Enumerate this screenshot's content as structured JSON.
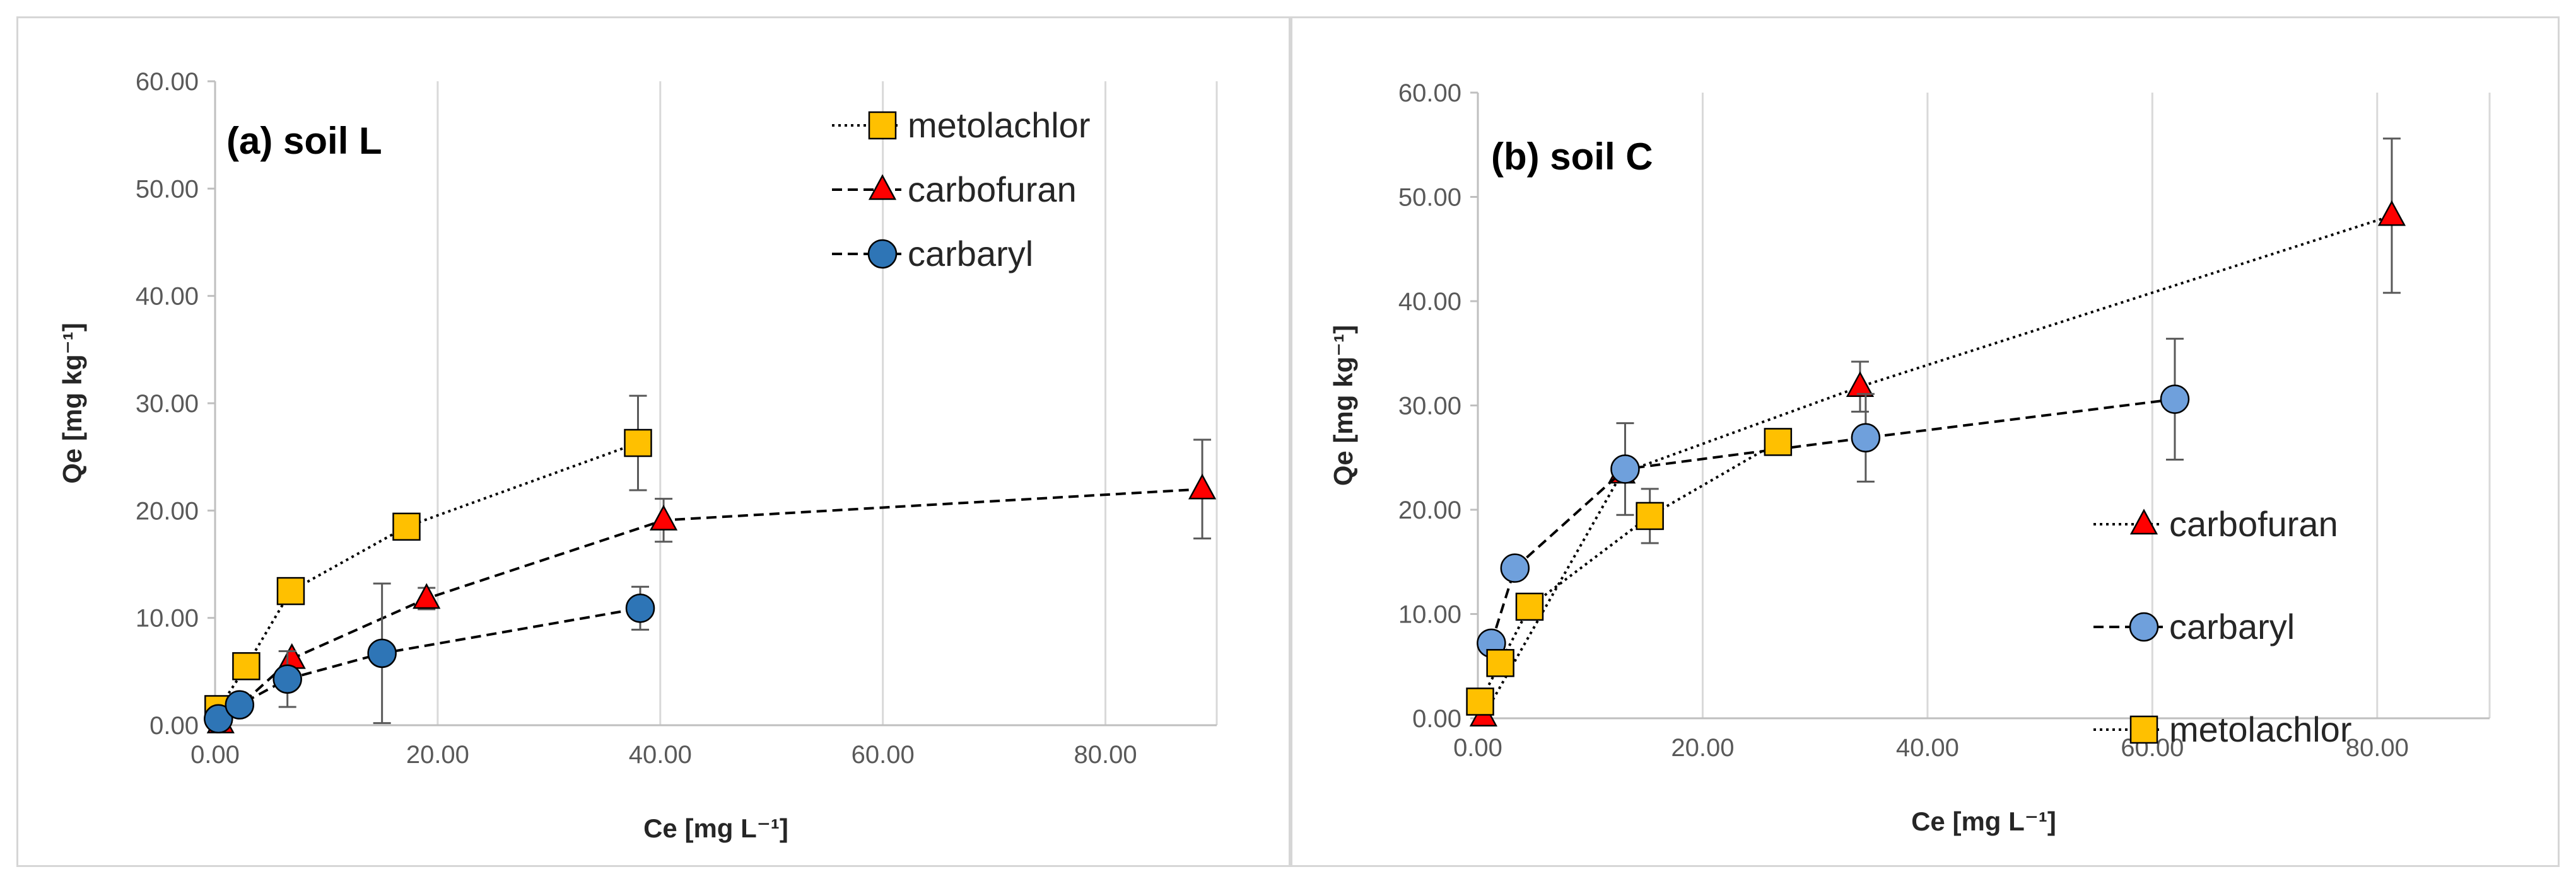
{
  "chart_data": [
    {
      "type": "scatter",
      "title": "(a) soil L",
      "xlabel": "Ce [mg L⁻¹]",
      "ylabel": "Qe [mg kg⁻¹]",
      "xlim": [
        0,
        90
      ],
      "ylim": [
        0,
        60
      ],
      "xticks": [
        "0.00",
        "20.00",
        "40.00",
        "60.00",
        "80.00"
      ],
      "yticks": [
        "0.00",
        "10.00",
        "20.00",
        "30.00",
        "40.00",
        "50.00",
        "60.00"
      ],
      "grid": "vertical",
      "legend_position": "top-right",
      "series": [
        {
          "name": "metolachlor",
          "marker": "square",
          "color": "#FFC000",
          "line": "dotted",
          "x": [
            0.3,
            2.8,
            6.8,
            17.2,
            38.0
          ],
          "y": [
            1.5,
            5.5,
            12.5,
            18.5,
            26.3
          ],
          "err": [
            0,
            0,
            0,
            0,
            4.4
          ]
        },
        {
          "name": "carbofuran",
          "marker": "triangle",
          "color": "#FF0000",
          "line": "dashed",
          "x": [
            0.5,
            6.9,
            19.0,
            40.3,
            88.7
          ],
          "y": [
            0.2,
            6.2,
            11.8,
            19.1,
            22.0
          ],
          "err": [
            0,
            0,
            1.0,
            2.0,
            4.6
          ]
        },
        {
          "name": "carbaryl",
          "marker": "circle",
          "color": "#2E75B6",
          "line": "dashed",
          "x": [
            0.3,
            2.2,
            6.5,
            15.0,
            38.2
          ],
          "y": [
            0.6,
            1.9,
            4.3,
            6.7,
            10.9
          ],
          "err": [
            0,
            0,
            2.6,
            6.5,
            2.0
          ]
        }
      ]
    },
    {
      "type": "scatter",
      "title": "(b) soil C",
      "xlabel": "Ce [mg L⁻¹]",
      "ylabel": "Qe [mg kg⁻¹]",
      "xlim": [
        0,
        90
      ],
      "ylim": [
        0,
        60
      ],
      "xticks": [
        "0.00",
        "20.00",
        "40.00",
        "60.00",
        "80.00"
      ],
      "yticks": [
        "0.00",
        "10.00",
        "20.00",
        "30.00",
        "40.00",
        "50.00",
        "60.00"
      ],
      "grid": "vertical",
      "legend_position": "right",
      "series": [
        {
          "name": "carbofuran",
          "marker": "triangle",
          "color": "#FF0000",
          "line": "dotted",
          "x": [
            0.5,
            12.8,
            34.0,
            81.3
          ],
          "y": [
            0.2,
            23.5,
            31.8,
            48.2
          ],
          "err": [
            0,
            0,
            2.4,
            7.4
          ]
        },
        {
          "name": "carbaryl",
          "marker": "circle",
          "color": "#6FA0DC",
          "line": "dashed",
          "x": [
            1.2,
            3.3,
            13.1,
            34.5,
            62.0
          ],
          "y": [
            7.2,
            14.4,
            23.9,
            26.9,
            30.6
          ],
          "err": [
            0,
            0,
            4.4,
            4.2,
            5.8
          ]
        },
        {
          "name": "metolachlor",
          "marker": "square",
          "color": "#FFC000",
          "line": "dotted",
          "x": [
            0.2,
            2.0,
            4.6,
            15.3,
            26.7
          ],
          "y": [
            1.6,
            5.3,
            10.7,
            19.4,
            26.5
          ],
          "err": [
            0,
            0,
            0,
            2.6,
            0
          ]
        }
      ]
    }
  ]
}
